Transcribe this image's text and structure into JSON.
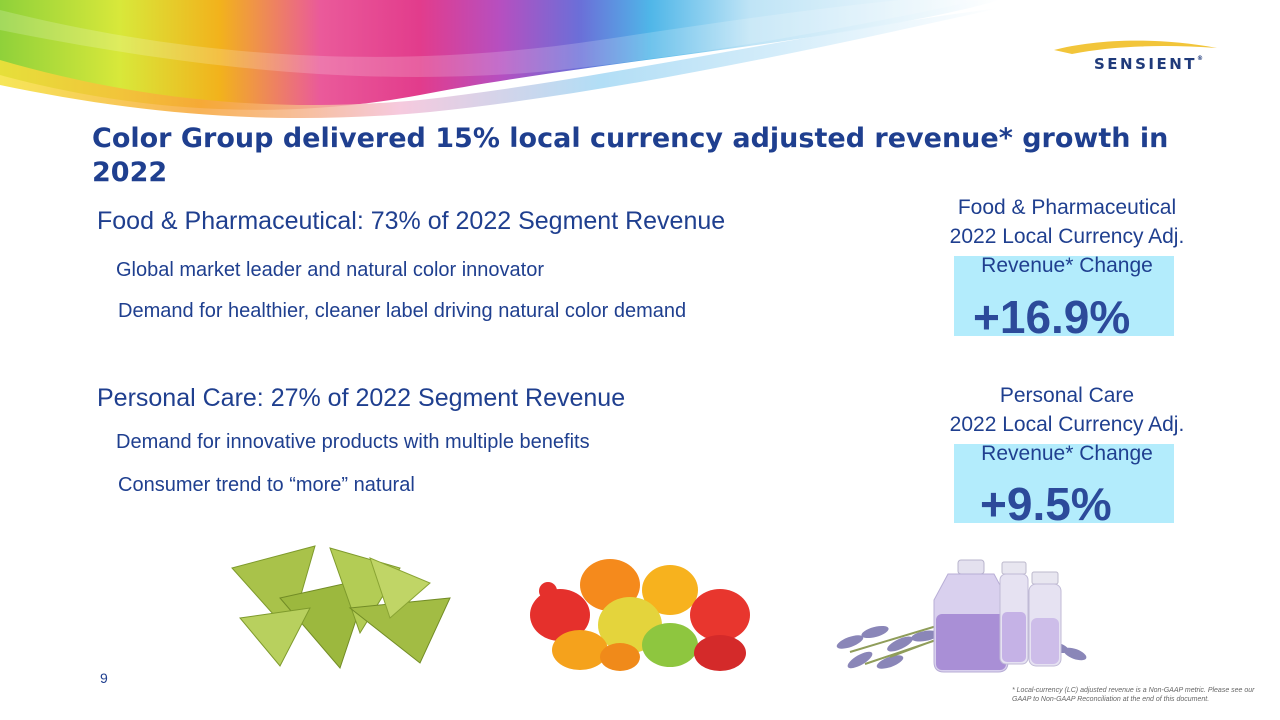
{
  "brand": {
    "logo_text": "SENSIENT",
    "trademark": "®"
  },
  "title": "Color Group delivered 15% local currency adjusted revenue* growth in 2022",
  "segments": [
    {
      "heading": "Food & Pharmaceutical: 73% of 2022 Segment Revenue",
      "bullets": [
        "Global market leader and natural color innovator",
        "Demand for healthier, cleaner label driving natural color demand"
      ]
    },
    {
      "heading": "Personal Care: 27% of 2022 Segment Revenue",
      "bullets": [
        "Demand for innovative products with multiple benefits",
        "Consumer trend to “more” natural"
      ]
    }
  ],
  "kpis": [
    {
      "line1": "Food & Pharmaceutical",
      "line2": "2022 Local Currency Adj.",
      "line3": "Revenue* Change",
      "value": "+16.9%"
    },
    {
      "line1": "Personal Care",
      "line2": "2022 Local Currency Adj.",
      "line3": "Revenue* Change",
      "value": "+9.5%"
    }
  ],
  "page_number": "9",
  "footnote": "* Local-currency (LC) adjusted revenue is a Non-GAAP metric. Please see our GAAP to Non-GAAP Reconciliation at the end of this document."
}
